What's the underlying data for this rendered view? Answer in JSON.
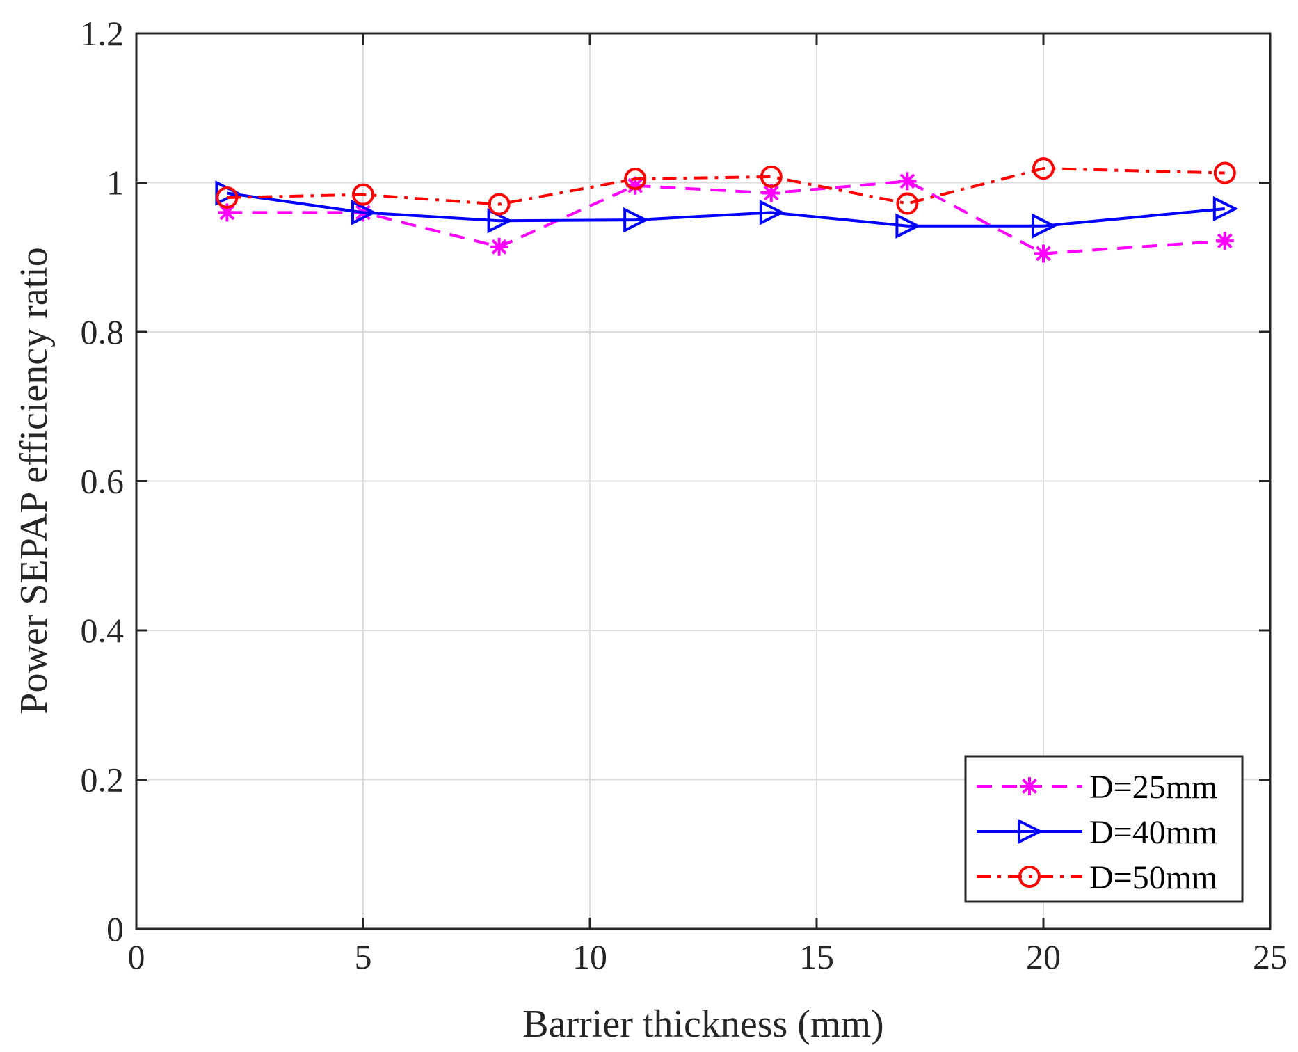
{
  "chart_data": {
    "type": "line",
    "title": "",
    "xlabel": "Barrier thickness (mm)",
    "ylabel": "Power SEPAP efficiency ratio",
    "xlim": [
      0,
      25
    ],
    "ylim": [
      0,
      1.2
    ],
    "xticks": [
      0,
      5,
      10,
      15,
      20,
      25
    ],
    "xtick_labels": [
      "0",
      "5",
      "10",
      "15",
      "20",
      "25"
    ],
    "yticks": [
      0,
      0.2,
      0.4,
      0.6,
      0.8,
      1,
      1.2
    ],
    "ytick_labels": [
      "0",
      "0.2",
      "0.4",
      "0.6",
      "0.8",
      "1",
      "1.2"
    ],
    "grid": true,
    "legend_position": "bottom-right",
    "x": [
      2,
      5,
      8,
      11,
      14,
      17,
      20,
      24
    ],
    "series": [
      {
        "name": "D=25mm",
        "values": [
          0.96,
          0.96,
          0.914,
          0.996,
          0.986,
          1.002,
          0.905,
          0.922
        ],
        "color": "#ff00ff",
        "line_style": "dashed",
        "marker": "asterisk"
      },
      {
        "name": "D=40mm",
        "values": [
          0.986,
          0.96,
          0.949,
          0.95,
          0.96,
          0.942,
          0.942,
          0.965
        ],
        "color": "#0000ff",
        "line_style": "solid",
        "marker": "triangle-right"
      },
      {
        "name": "D=50mm",
        "values": [
          0.98,
          0.984,
          0.971,
          1.005,
          1.008,
          0.972,
          1.019,
          1.013
        ],
        "color": "#ff0000",
        "line_style": "dash-dot",
        "marker": "circle"
      }
    ]
  }
}
